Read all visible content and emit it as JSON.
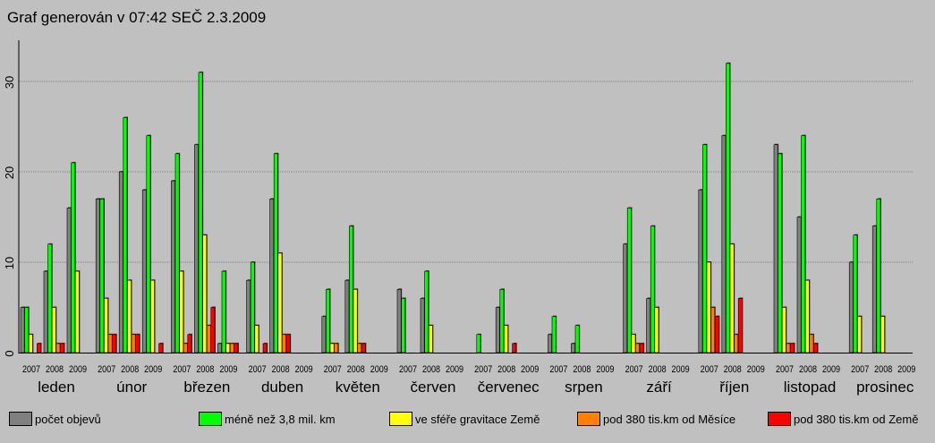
{
  "title": "Graf generován v 07:42 SEČ 2.3.2009",
  "legend": [
    {
      "label": "počet objevů",
      "color": "#808080"
    },
    {
      "label": "méně než 3,8 mil. km",
      "color": "#00ff00"
    },
    {
      "label": "ve sféře gravitace Země",
      "color": "#ffff00"
    },
    {
      "label": "pod 380 tis.km od Měsíce",
      "color": "#ff8000"
    },
    {
      "label": "pod 380 tis.km od Země",
      "color": "#ff0000"
    }
  ],
  "chart_data": {
    "type": "bar",
    "ylim": [
      0,
      33
    ],
    "yticks": [
      0,
      10,
      20,
      30
    ],
    "grid": true,
    "legend_position": "bottom",
    "year_labels": [
      "2007",
      "2008",
      "2009"
    ],
    "series_names": [
      "počet objevů",
      "méně než 3,8 mil. km",
      "ve sféře gravitace Země",
      "pod 380 tis.km od Měsíce",
      "pod 380 tis.km od Země"
    ],
    "months": [
      {
        "name": "leden",
        "groups": [
          [
            5,
            5,
            2,
            0,
            1
          ],
          [
            9,
            12,
            5,
            1,
            1
          ],
          [
            16,
            21,
            9,
            0,
            0
          ]
        ]
      },
      {
        "name": "únor",
        "groups": [
          [
            17,
            17,
            6,
            2,
            2
          ],
          [
            20,
            26,
            8,
            2,
            2
          ],
          [
            18,
            24,
            8,
            0,
            1
          ]
        ]
      },
      {
        "name": "březen",
        "groups": [
          [
            19,
            22,
            9,
            1,
            2
          ],
          [
            23,
            31,
            13,
            3,
            5
          ],
          [
            1,
            9,
            1,
            1,
            1
          ]
        ]
      },
      {
        "name": "duben",
        "groups": [
          [
            8,
            10,
            3,
            0,
            1
          ],
          [
            17,
            22,
            11,
            2,
            2
          ],
          [
            0,
            0,
            0,
            0,
            0
          ]
        ]
      },
      {
        "name": "květen",
        "groups": [
          [
            4,
            7,
            1,
            1,
            0
          ],
          [
            8,
            14,
            7,
            1,
            1
          ],
          [
            0,
            0,
            0,
            0,
            0
          ]
        ]
      },
      {
        "name": "červen",
        "groups": [
          [
            7,
            6,
            0,
            0,
            0
          ],
          [
            6,
            9,
            3,
            0,
            0
          ],
          [
            0,
            0,
            0,
            0,
            0
          ]
        ]
      },
      {
        "name": "červenec",
        "groups": [
          [
            0,
            2,
            0,
            0,
            0
          ],
          [
            5,
            7,
            3,
            0,
            1
          ],
          [
            0,
            0,
            0,
            0,
            0
          ]
        ]
      },
      {
        "name": "srpen",
        "groups": [
          [
            2,
            4,
            0,
            0,
            0
          ],
          [
            1,
            3,
            0,
            0,
            0
          ],
          [
            0,
            0,
            0,
            0,
            0
          ]
        ]
      },
      {
        "name": "září",
        "groups": [
          [
            12,
            16,
            2,
            1,
            1
          ],
          [
            6,
            14,
            5,
            0,
            0
          ],
          [
            0,
            0,
            0,
            0,
            0
          ]
        ]
      },
      {
        "name": "říjen",
        "groups": [
          [
            18,
            23,
            10,
            5,
            4
          ],
          [
            24,
            32,
            12,
            2,
            6
          ],
          [
            0,
            0,
            0,
            0,
            0
          ]
        ]
      },
      {
        "name": "listopad",
        "groups": [
          [
            23,
            22,
            5,
            1,
            1
          ],
          [
            15,
            24,
            8,
            2,
            1
          ],
          [
            0,
            0,
            0,
            0,
            0
          ]
        ]
      },
      {
        "name": "prosinec",
        "groups": [
          [
            10,
            13,
            4,
            0,
            0
          ],
          [
            14,
            17,
            4,
            0,
            0
          ],
          [
            0,
            0,
            0,
            0,
            0
          ]
        ]
      }
    ]
  }
}
